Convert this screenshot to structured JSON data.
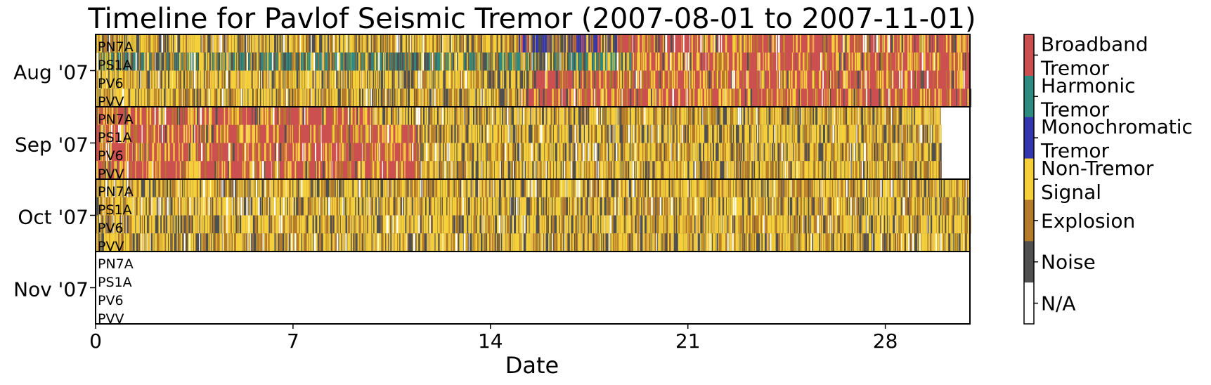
{
  "chart_data": {
    "type": "heatmap",
    "title": "Timeline for Pavlof Seismic Tremor (2007-08-01 to 2007-11-01)",
    "xlabel": "Date",
    "xlim": [
      0,
      31
    ],
    "xticks": [
      0,
      7,
      14,
      21,
      28
    ],
    "rows": [
      {
        "label": "Aug '07",
        "days": 31
      },
      {
        "label": "Sep '07",
        "days": 30
      },
      {
        "label": "Oct '07",
        "days": 31
      },
      {
        "label": "Nov '07",
        "days": 0
      }
    ],
    "stations": [
      "PN7A",
      "PS1A",
      "PV6",
      "PVV"
    ],
    "classes": [
      {
        "label": "Broadband\nTremor",
        "color": "#cd5050"
      },
      {
        "label": "Harmonic\nTremor",
        "color": "#2e8b80"
      },
      {
        "label": "Monochromatic\nTremor",
        "color": "#3535b0"
      },
      {
        "label": "Non-Tremor\nSignal",
        "color": "#f5d03a"
      },
      {
        "label": "Explosion",
        "color": "#b57a2a"
      },
      {
        "label": "Noise",
        "color": "#505050"
      },
      {
        "label": "N/A",
        "color": "#ffffff"
      }
    ],
    "segments": {
      "Aug '07": {
        "PN7A": [
          [
            0,
            15,
            "mixed"
          ],
          [
            15,
            18.5,
            "mono_mix"
          ],
          [
            18.5,
            31,
            "broadband"
          ]
        ],
        "PS1A": [
          [
            0,
            19,
            "harmonic_mix"
          ],
          [
            19,
            31,
            "broadband"
          ]
        ],
        "PV6": [
          [
            0,
            13.7,
            "mixed"
          ],
          [
            13.7,
            15.5,
            "explosion"
          ],
          [
            15.5,
            31,
            "broadband"
          ]
        ],
        "PVV": [
          [
            0,
            15,
            "mixed"
          ],
          [
            15,
            31,
            "broadband"
          ]
        ]
      },
      "Sep '07": {
        "PN7A": [
          [
            0,
            9.8,
            "broadband"
          ],
          [
            9.8,
            30,
            "mixed"
          ]
        ],
        "PS1A": [
          [
            0,
            11.5,
            "broadband"
          ],
          [
            11.5,
            30,
            "mixed"
          ]
        ],
        "PV6": [
          [
            0,
            11.5,
            "broadband"
          ],
          [
            11.5,
            30,
            "mixed"
          ]
        ],
        "PVV": [
          [
            0,
            11.5,
            "broadband"
          ],
          [
            11.5,
            30,
            "mixed"
          ]
        ]
      },
      "Oct '07": {
        "PN7A": [
          [
            0,
            31,
            "mixed"
          ]
        ],
        "PS1A": [
          [
            0,
            31,
            "mixed"
          ]
        ],
        "PV6": [
          [
            0,
            31,
            "mixed"
          ]
        ],
        "PVV": [
          [
            0,
            31,
            "mixed"
          ]
        ]
      }
    }
  }
}
